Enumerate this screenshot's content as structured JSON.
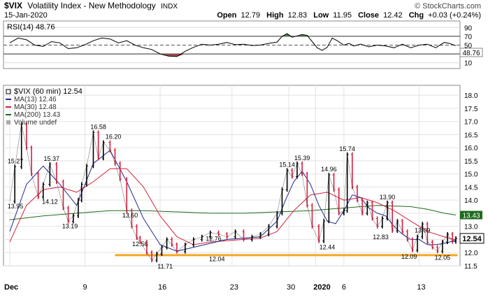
{
  "header": {
    "symbol": "$VIX",
    "name": "Volatility Index - New Methodology",
    "exchange": "INDX",
    "date": "15-Jan-2020",
    "copyright": "© StockCharts.com",
    "open_label": "Open",
    "open": "12.79",
    "high_label": "High",
    "high": "12.83",
    "low_label": "Low",
    "low": "11.95",
    "close_label": "Close",
    "close": "12.42",
    "chg_label": "Chg",
    "chg": "+0.03 (+0.24%)"
  },
  "rsi_panel": {
    "label": "RSI(14) 48.76",
    "current": 48.76,
    "current_label": "48.76",
    "ticks": [
      "90",
      "70",
      "50",
      "30",
      "10"
    ],
    "overbought": 70,
    "oversold": 30
  },
  "price_panel": {
    "legend": [
      {
        "text": "$VIX (60 min) 12.54",
        "color": "#000000"
      },
      {
        "text": "MA(13) 12.46",
        "color": "#1f2a8c"
      },
      {
        "text": "MA(30) 12.48",
        "color": "#d6213f"
      },
      {
        "text": "MA(200) 13.43",
        "color": "#1e6b1e"
      },
      {
        "text": "Volume undef",
        "color": "#555555"
      }
    ],
    "ticks": [
      "18.0",
      "17.5",
      "17.0",
      "16.5",
      "16.0",
      "15.5",
      "15.0",
      "14.5",
      "14.0",
      "13.5",
      "13.0",
      "12.5",
      "12.0",
      "11.5"
    ],
    "last_price_label": "12.54",
    "ma200_label": "13.43",
    "annotations": [
      {
        "text": "15.27",
        "x": 0.3,
        "y": 15.27
      },
      {
        "text": "15.37",
        "x": 2.5,
        "y": 15.37
      },
      {
        "text": "16.58",
        "x": 5.3,
        "y": 16.58
      },
      {
        "text": "16.20",
        "x": 6.2,
        "y": 16.2
      },
      {
        "text": "14.12",
        "x": 2.4,
        "y": 14.12
      },
      {
        "text": "13.95",
        "x": 0.3,
        "y": 13.95
      },
      {
        "text": "13.19",
        "x": 3.6,
        "y": 13.19
      },
      {
        "text": "13.60",
        "x": 7.2,
        "y": 13.6
      },
      {
        "text": "12.56",
        "x": 7.8,
        "y": 12.56
      },
      {
        "text": "11.71",
        "x": 9.3,
        "y": 11.71
      },
      {
        "text": "12.76",
        "x": 12.2,
        "y": 12.76
      },
      {
        "text": "12.04",
        "x": 12.4,
        "y": 12.04
      },
      {
        "text": "15.14",
        "x": 16.6,
        "y": 15.14
      },
      {
        "text": "15.39",
        "x": 17.5,
        "y": 15.39
      },
      {
        "text": "14.96",
        "x": 19.1,
        "y": 14.96
      },
      {
        "text": "15.74",
        "x": 20.2,
        "y": 15.74
      },
      {
        "text": "12.44",
        "x": 19.0,
        "y": 12.44
      },
      {
        "text": "13.90",
        "x": 22.6,
        "y": 13.9
      },
      {
        "text": "12.83",
        "x": 22.2,
        "y": 12.83
      },
      {
        "text": "13.09",
        "x": 24.7,
        "y": 13.09
      },
      {
        "text": "12.09",
        "x": 23.9,
        "y": 12.09
      },
      {
        "text": "12.05",
        "x": 25.9,
        "y": 12.05
      }
    ]
  },
  "x_axis": {
    "labels": [
      {
        "text": "Dec",
        "x": 0,
        "bold": true
      },
      {
        "text": "9",
        "x": 4.5
      },
      {
        "text": "16",
        "x": 9.0
      },
      {
        "text": "23",
        "x": 13.3
      },
      {
        "text": "30",
        "x": 16.7
      },
      {
        "text": "2020",
        "x": 18.3,
        "bold": true
      },
      {
        "text": "6",
        "x": 20.0
      },
      {
        "text": "13",
        "x": 24.5
      }
    ]
  },
  "colors": {
    "up": "#000000",
    "down": "#d6213f",
    "support_line": "#f5a623",
    "ma200_tag": "#1e6b1e",
    "rsi_fill_high": "#4f7f4f",
    "rsi_fill_low": "#9e4a4a"
  },
  "chart_data": {
    "type": "line",
    "title": "$VIX Volatility Index - New Methodology INDX",
    "x_unit": "trading sessions from Dec 2, 2019 to Jan 15, 2020 (60 min bars)",
    "ylim": [
      11.55,
      18.3
    ],
    "horizontal_line": 11.9,
    "series": [
      {
        "name": "$VIX (60 min)",
        "x": [
          0,
          0.3,
          0.7,
          1,
          1.3,
          1.7,
          2,
          2.4,
          2.8,
          3.2,
          3.5,
          3.8,
          4.1,
          4.3,
          4.6,
          5,
          5.3,
          5.6,
          6,
          6.3,
          6.6,
          7,
          7.3,
          7.6,
          7.8,
          8.2,
          8.5,
          8.8,
          9.1,
          9.4,
          9.7,
          10,
          10.5,
          11,
          11.5,
          12,
          12.5,
          13,
          13.5,
          14,
          14.5,
          15,
          15.5,
          16,
          16.3,
          16.6,
          16.9,
          17.2,
          17.5,
          17.8,
          18.1,
          18.5,
          18.8,
          19.1,
          19.4,
          19.7,
          20,
          20.2,
          20.5,
          20.8,
          21.1,
          21.4,
          21.7,
          22,
          22.3,
          22.6,
          22.9,
          23.2,
          23.5,
          23.8,
          24.1,
          24.4,
          24.7,
          25,
          25.3,
          25.6,
          25.9,
          26.2,
          26.5,
          26.7
        ],
        "values": [
          13.95,
          15.27,
          16.9,
          16.0,
          15.0,
          14.12,
          14.6,
          15.37,
          14.7,
          13.7,
          13.19,
          13.4,
          14.0,
          14.6,
          15.3,
          16.58,
          15.6,
          16.2,
          15.9,
          15.4,
          14.8,
          13.6,
          13.0,
          12.56,
          12.4,
          12.0,
          11.71,
          11.95,
          12.2,
          12.5,
          12.3,
          12.04,
          12.3,
          12.5,
          12.6,
          12.76,
          12.7,
          12.6,
          12.8,
          12.5,
          12.6,
          12.7,
          13.0,
          13.5,
          14.4,
          15.14,
          14.9,
          15.39,
          15.0,
          13.8,
          13.0,
          12.44,
          13.2,
          14.96,
          14.4,
          13.5,
          13.6,
          15.74,
          14.5,
          14.0,
          13.5,
          13.9,
          13.3,
          13.0,
          13.3,
          13.9,
          12.83,
          13.2,
          12.8,
          12.5,
          12.09,
          12.6,
          13.09,
          12.4,
          12.2,
          12.05,
          12.4,
          12.7,
          12.42,
          12.54
        ]
      },
      {
        "name": "MA(13)",
        "x": [
          0,
          1,
          2,
          3,
          4,
          5,
          6,
          7,
          8,
          9,
          10,
          11,
          12,
          13,
          14,
          15,
          16,
          16.5,
          17,
          17.5,
          18,
          18.5,
          19,
          19.5,
          20,
          20.5,
          21,
          21.5,
          22,
          22.5,
          23,
          23.5,
          24,
          24.5,
          25,
          25.5,
          26,
          26.7
        ],
        "values": [
          12.8,
          14.6,
          15.3,
          14.6,
          13.8,
          15.4,
          15.9,
          14.7,
          13.3,
          12.3,
          12.05,
          12.2,
          12.35,
          12.5,
          12.55,
          12.6,
          13.2,
          14.0,
          14.7,
          15.1,
          14.6,
          13.8,
          13.2,
          13.1,
          13.6,
          14.2,
          14.1,
          13.7,
          13.5,
          13.4,
          13.0,
          12.7,
          12.5,
          12.5,
          12.3,
          12.3,
          12.35,
          12.46
        ]
      },
      {
        "name": "MA(30)",
        "x": [
          0,
          1,
          2,
          3,
          4,
          5,
          6,
          7,
          8,
          9,
          10,
          11,
          12,
          13,
          14,
          15,
          16,
          17,
          18,
          19,
          20,
          21,
          22,
          23,
          24,
          25,
          26,
          26.7
        ],
        "values": [
          12.4,
          13.8,
          14.4,
          14.5,
          14.3,
          14.7,
          15.2,
          15.2,
          14.5,
          13.4,
          12.6,
          12.3,
          12.4,
          12.45,
          12.5,
          12.55,
          12.8,
          13.6,
          14.2,
          14.3,
          14.0,
          14.1,
          13.9,
          13.6,
          13.2,
          12.8,
          12.6,
          12.48
        ]
      },
      {
        "name": "MA(200)",
        "x": [
          0,
          2,
          4,
          6,
          8,
          10,
          12,
          14,
          16,
          18,
          20,
          22,
          24,
          25,
          26,
          26.7
        ],
        "values": [
          13.25,
          13.4,
          13.5,
          13.6,
          13.6,
          13.55,
          13.5,
          13.5,
          13.55,
          13.6,
          13.7,
          13.8,
          13.75,
          13.65,
          13.5,
          13.43
        ]
      },
      {
        "name": "RSI(14)",
        "x": [
          0,
          0.5,
          1,
          1.5,
          2,
          2.5,
          3,
          3.5,
          4,
          4.5,
          5,
          5.5,
          6,
          6.5,
          7,
          7.5,
          8,
          8.5,
          9,
          9.5,
          10,
          10.5,
          11,
          11.5,
          12,
          12.5,
          13,
          13.5,
          14,
          14.5,
          15,
          15.5,
          16,
          16.3,
          16.6,
          16.9,
          17.2,
          17.5,
          17.8,
          18.1,
          18.4,
          18.7,
          19,
          19.3,
          19.6,
          20,
          20.3,
          20.6,
          21,
          21.5,
          22,
          22.5,
          23,
          23.5,
          24,
          24.5,
          25,
          25.5,
          26,
          26.3,
          26.7
        ],
        "values": [
          55,
          66,
          62,
          50,
          47,
          58,
          55,
          42,
          44,
          51,
          60,
          66,
          64,
          55,
          60,
          50,
          44,
          40,
          30,
          25,
          24,
          36,
          45,
          52,
          50,
          52,
          56,
          51,
          52,
          49,
          50,
          54,
          57,
          70,
          76,
          68,
          71,
          74,
          72,
          58,
          44,
          38,
          45,
          66,
          60,
          50,
          54,
          48,
          52,
          46,
          50,
          48,
          44,
          52,
          44,
          50,
          52,
          44,
          56,
          54,
          48.76
        ]
      }
    ]
  }
}
